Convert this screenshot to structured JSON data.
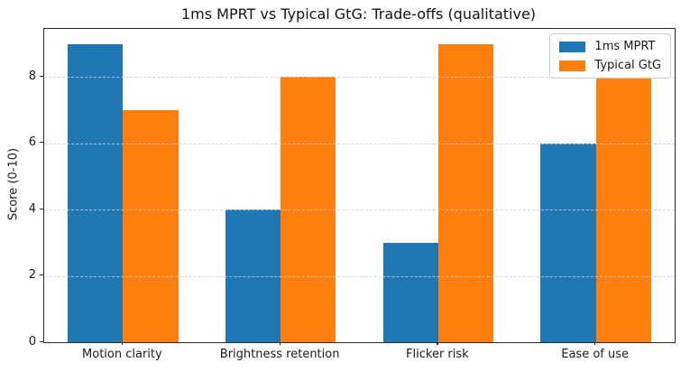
{
  "chart_data": {
    "type": "bar",
    "title": "1ms MPRT vs Typical GtG: Trade-offs (qualitative)",
    "xlabel": "",
    "ylabel": "Score (0-10)",
    "categories": [
      "Motion clarity",
      "Brightness retention",
      "Flicker risk",
      "Ease of use"
    ],
    "series": [
      {
        "name": "1ms MPRT",
        "color": "#1f77b4",
        "values": [
          9,
          4,
          3,
          6
        ]
      },
      {
        "name": "Typical GtG",
        "color": "#ff7f0e",
        "values": [
          7,
          8,
          9,
          8
        ]
      }
    ],
    "ylim": [
      0,
      9.45
    ],
    "yticks": [
      0,
      2,
      4,
      6,
      8
    ],
    "grid": "y-dashed-over-bars",
    "legend_position": "upper-right",
    "bar_width_fraction": 0.35
  }
}
